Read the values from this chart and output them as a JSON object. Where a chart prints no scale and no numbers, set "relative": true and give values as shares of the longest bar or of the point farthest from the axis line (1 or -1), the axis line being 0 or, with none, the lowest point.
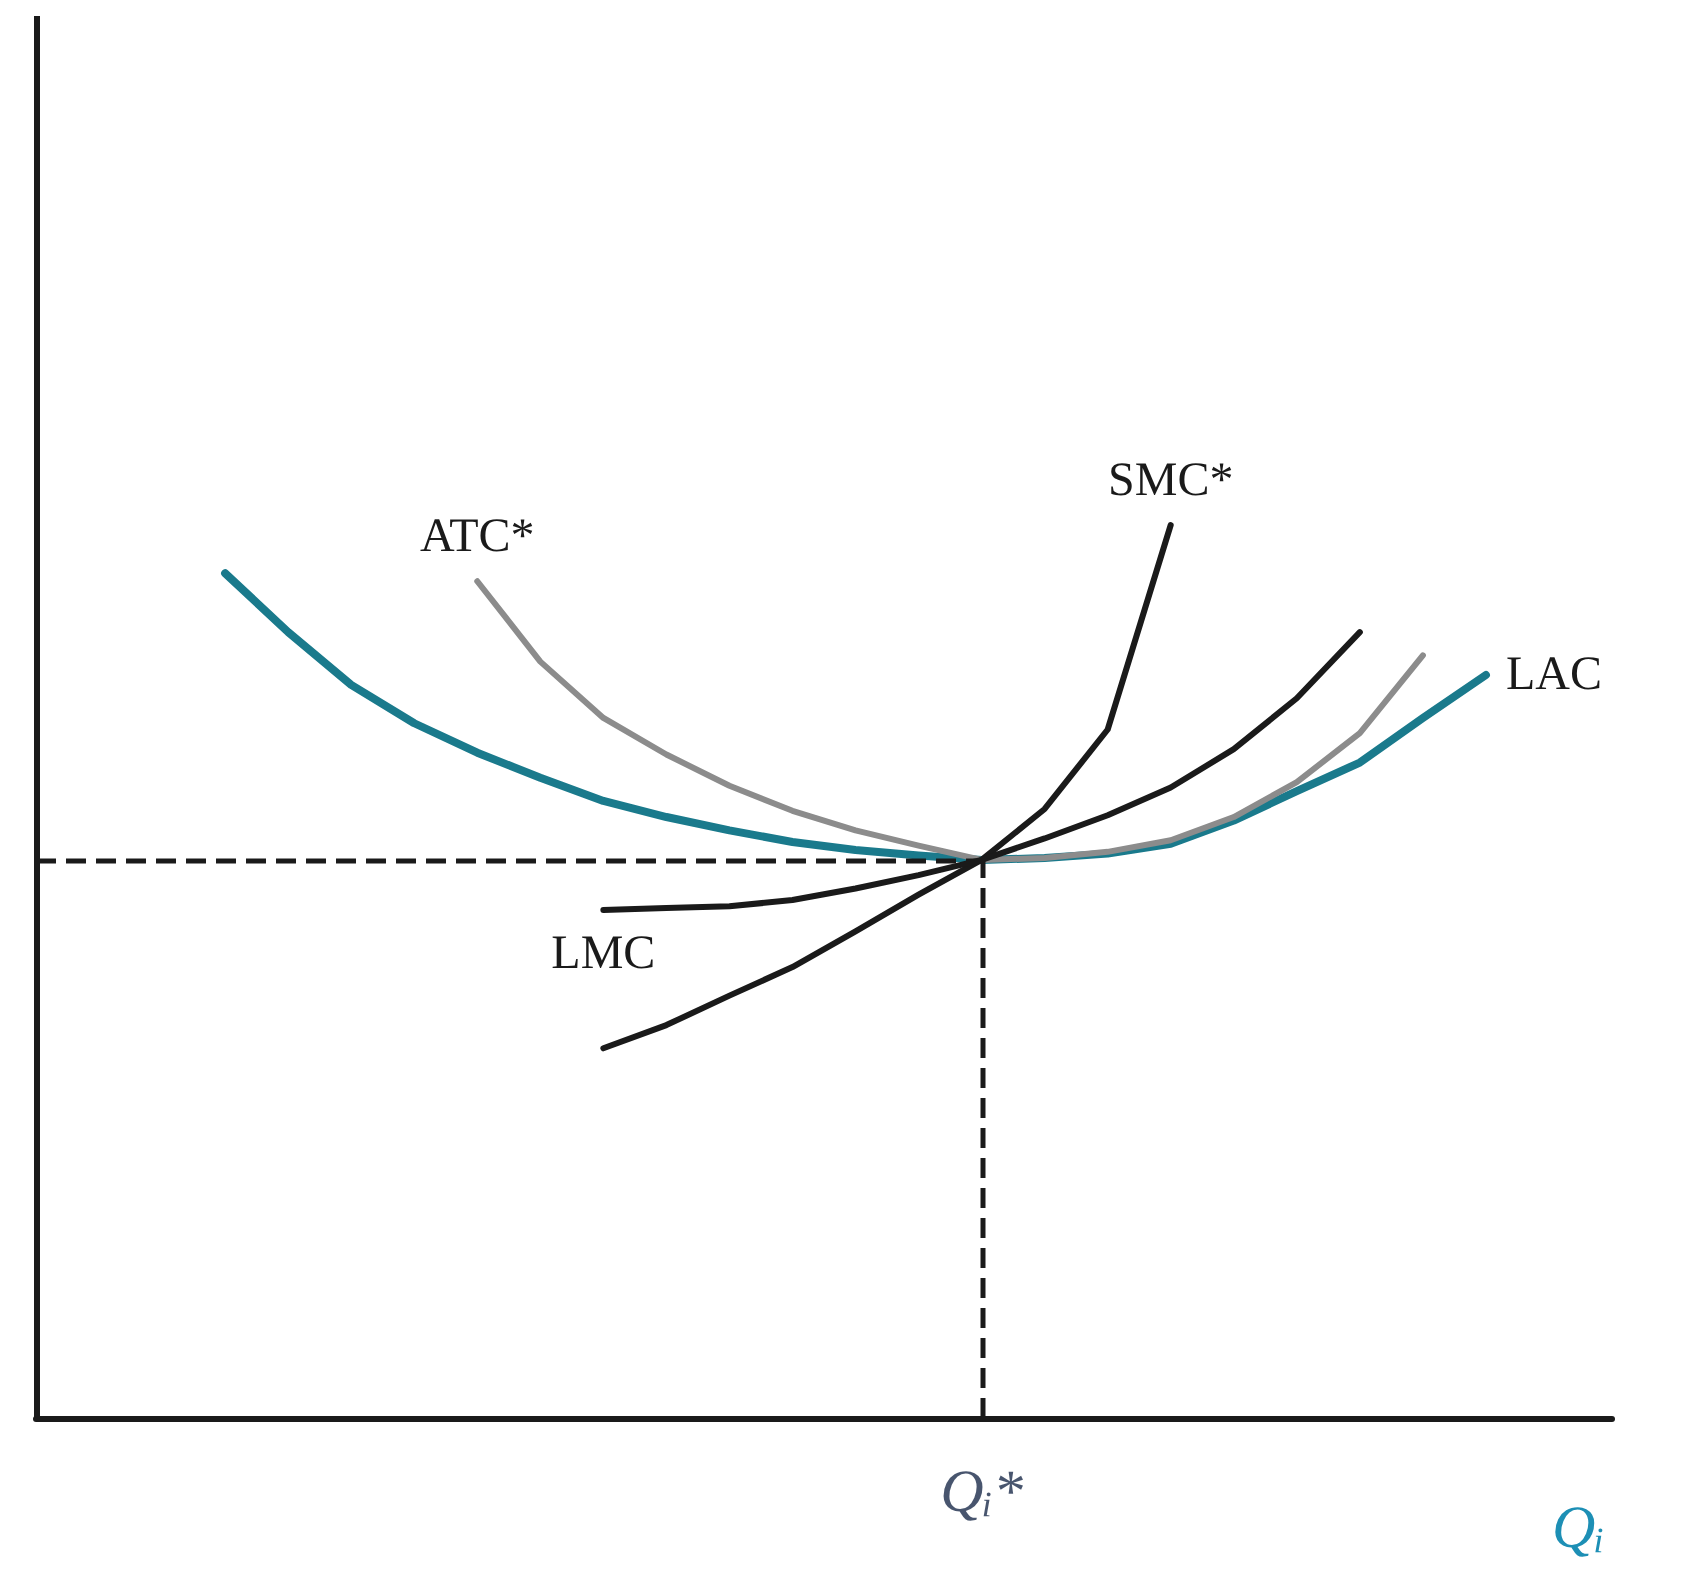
{
  "chart_data": {
    "type": "line",
    "relative": true,
    "xlabel": "Qᵢ",
    "categories": [
      null,
      null,
      null,
      null,
      null,
      null,
      null,
      null,
      null,
      null,
      null,
      null,
      null,
      null,
      null,
      null,
      null,
      null,
      null,
      null,
      null,
      null,
      null,
      null,
      null,
      null
    ],
    "grid": false,
    "legend": false,
    "marker": "none",
    "line_style": "solid",
    "series": [
      {
        "name": "LAC",
        "color": "#1a7a8c",
        "values": [
          null,
          null,
          null,
          0.946,
          0.88,
          0.821,
          0.778,
          0.745,
          0.717,
          0.691,
          0.673,
          0.658,
          0.645,
          0.636,
          0.63,
          0.625,
          0.627,
          0.632,
          0.643,
          0.669,
          0.702,
          0.734,
          0.784,
          0.832,
          null,
          null
        ]
      },
      {
        "name": "ATC*",
        "color": "#8c8c8c",
        "values": [
          null,
          null,
          null,
          null,
          null,
          null,
          null,
          0.937,
          0.847,
          0.784,
          0.743,
          0.708,
          0.68,
          0.658,
          0.641,
          0.625,
          0.627,
          0.634,
          0.647,
          0.673,
          0.712,
          0.767,
          0.854,
          null,
          null,
          null
        ]
      },
      {
        "name": "SMC*",
        "color": "#1a1a1a",
        "values": [
          null,
          null,
          null,
          null,
          null,
          null,
          null,
          null,
          null,
          0.414,
          0.44,
          0.473,
          0.505,
          0.545,
          0.586,
          0.625,
          0.682,
          0.771,
          1,
          null,
          null,
          null,
          null,
          null,
          null,
          null
        ]
      },
      {
        "name": "LMC",
        "color": "#1a1a1a",
        "values": [
          null,
          null,
          null,
          null,
          null,
          null,
          null,
          null,
          null,
          0.569,
          0.571,
          0.573,
          0.58,
          0.593,
          0.608,
          0.625,
          0.649,
          0.675,
          0.706,
          0.749,
          0.806,
          0.88,
          null,
          null,
          null,
          null
        ]
      }
    ],
    "ref_lines": [
      {
        "axis": "y",
        "value": 0.625,
        "color": "#1a1a1a",
        "line_style": "dashed"
      }
    ],
    "annotations": [
      "Qᵢ*"
    ]
  }
}
